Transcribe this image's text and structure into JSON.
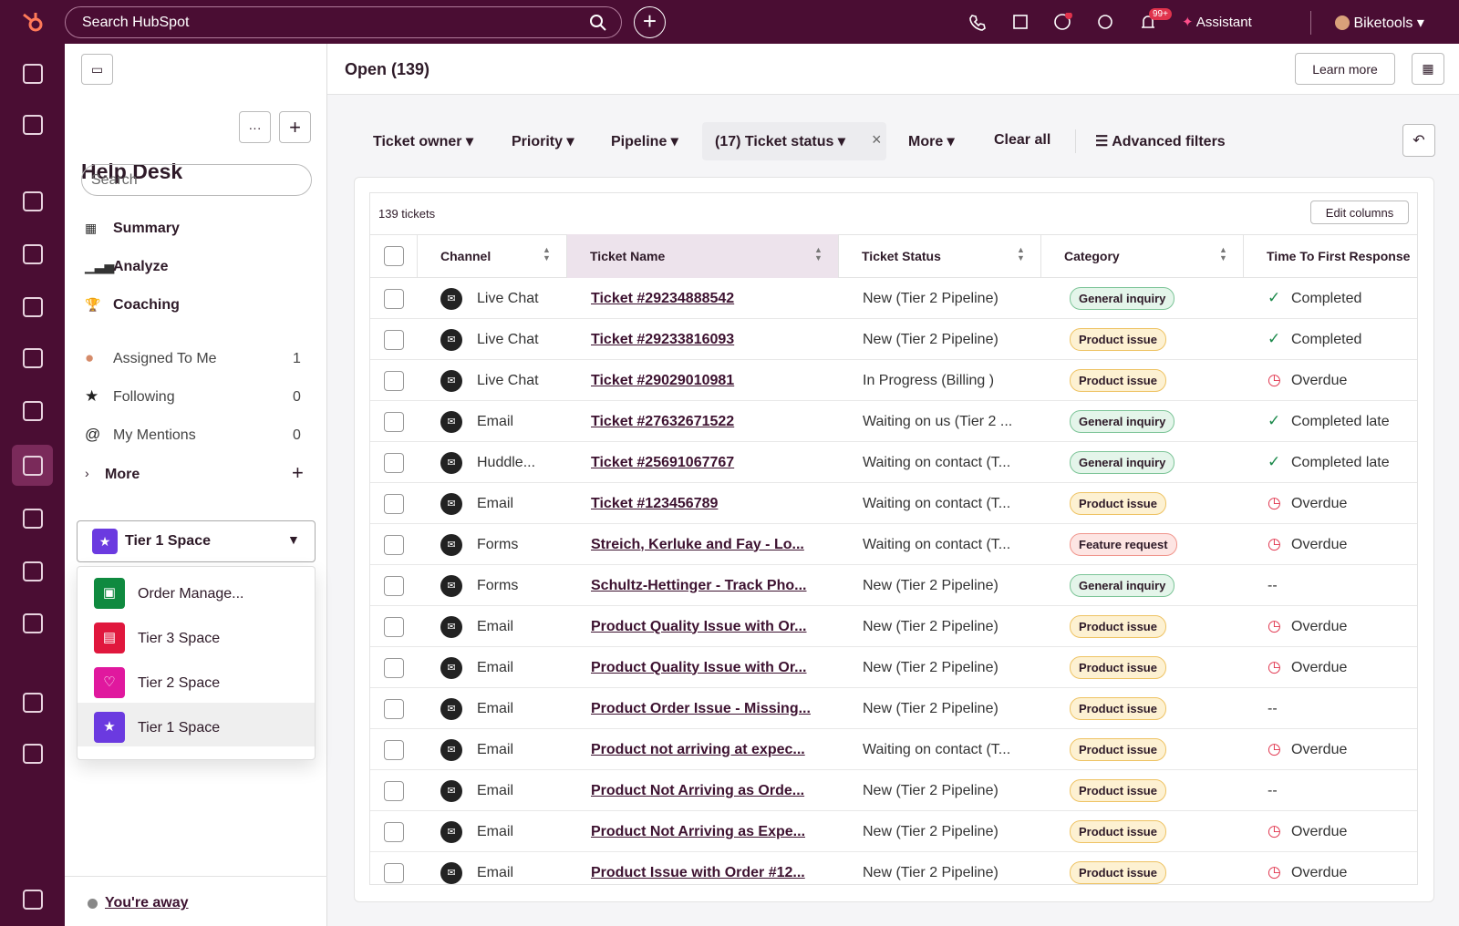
{
  "topbar": {
    "search": "Search HubSpot",
    "badge": "99+",
    "assistant": "Assistant",
    "account": "Biketools"
  },
  "header": {
    "title": "Open (139)",
    "learn_more": "Learn more"
  },
  "sidebar": {
    "title": "Help Desk",
    "search": "Search",
    "nav": [
      "Summary",
      "Analyze",
      "Coaching"
    ],
    "views": [
      {
        "label": "Assigned To Me",
        "count": 1
      },
      {
        "label": "Following",
        "count": 0
      },
      {
        "label": "My Mentions",
        "count": 0
      }
    ],
    "more": "More",
    "space_selected": "Tier 1 Space",
    "spaces": [
      "Order Manage...",
      "Tier 3 Space",
      "Tier 2 Space",
      "Tier 1 Space"
    ],
    "away": "You're away"
  },
  "filters": {
    "items": [
      "Ticket owner",
      "Priority",
      "Pipeline",
      "(17) Ticket status",
      "More"
    ],
    "clear": "Clear all",
    "advanced": "Advanced filters"
  },
  "table": {
    "count": "139 tickets",
    "edit": "Edit columns",
    "columns": [
      "Channel",
      "Ticket Name",
      "Ticket Status",
      "Category",
      "Time To First Response"
    ],
    "rows": [
      [
        "Live Chat",
        "Ticket #29234888542",
        "New (Tier 2 Pipeline)",
        "General inquiry",
        "Completed"
      ],
      [
        "Live Chat",
        "Ticket #29233816093",
        "New (Tier 2 Pipeline)",
        "Product issue",
        "Completed"
      ],
      [
        "Live Chat",
        "Ticket #29029010981",
        "In Progress (Billing )",
        "Product issue",
        "Overdue"
      ],
      [
        "Email",
        "Ticket #27632671522",
        "Waiting on us (Tier 2 ...",
        "General inquiry",
        "Completed late"
      ],
      [
        "Huddle...",
        "Ticket #25691067767",
        "Waiting on contact (T...",
        "General inquiry",
        "Completed late"
      ],
      [
        "Email",
        "Ticket #123456789",
        "Waiting on contact (T...",
        "Product issue",
        "Overdue"
      ],
      [
        "Forms",
        "Streich, Kerluke and Fay - Lo...",
        "Waiting on contact (T...",
        "Feature request",
        "Overdue"
      ],
      [
        "Forms",
        "Schultz-Hettinger - Track Pho...",
        "New (Tier 2 Pipeline)",
        "General inquiry",
        "--"
      ],
      [
        "Email",
        "Product Quality Issue with Or...",
        "New (Tier 2 Pipeline)",
        "Product issue",
        "Overdue"
      ],
      [
        "Email",
        "Product Quality Issue with Or...",
        "New (Tier 2 Pipeline)",
        "Product issue",
        "Overdue"
      ],
      [
        "Email",
        "Product Order Issue - Missing...",
        "New (Tier 2 Pipeline)",
        "Product issue",
        "--"
      ],
      [
        "Email",
        "Product not arriving at expec...",
        "Waiting on contact (T...",
        "Product issue",
        "Overdue"
      ],
      [
        "Email",
        "Product Not Arriving as Orde...",
        "New (Tier 2 Pipeline)",
        "Product issue",
        "--"
      ],
      [
        "Email",
        "Product Not Arriving as Expe...",
        "New (Tier 2 Pipeline)",
        "Product issue",
        "Overdue"
      ],
      [
        "Email",
        "Product Issue with Order #12...",
        "New (Tier 2 Pipeline)",
        "Product issue",
        "Overdue"
      ]
    ]
  }
}
